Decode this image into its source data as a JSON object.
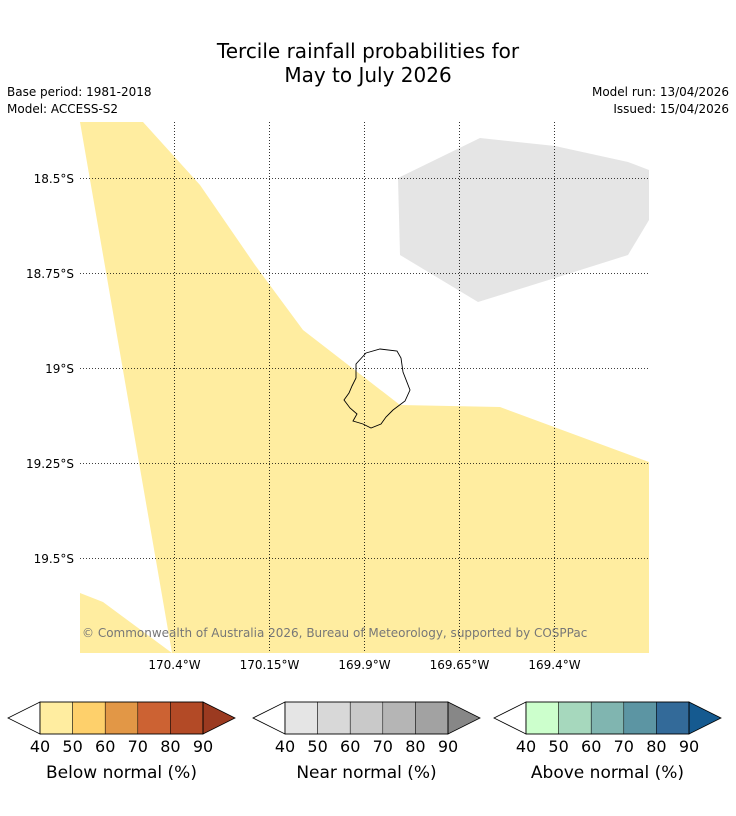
{
  "title": {
    "line1": "Tercile rainfall probabilities for",
    "line2": "May to July 2026"
  },
  "meta": {
    "base_period": "Base period: 1981-2018",
    "model": "Model: ACCESS-S2",
    "model_run": "Model run: 13/04/2026",
    "issued": "Issued: 15/04/2026"
  },
  "map": {
    "lat_labels": [
      "18.5°S",
      "18.75°S",
      "19°S",
      "19.25°S",
      "19.5°S"
    ],
    "lon_labels": [
      "170.4°W",
      "170.15°W",
      "169.9°W",
      "169.65°W",
      "169.4°W"
    ],
    "copyright": "© Commonwealth of Australia 2026, Bureau of Meteorology, supported by COSPPac",
    "colors": {
      "below_normal_40_50": "#ffeda0",
      "near_normal_40_50": "#e5e5e5"
    }
  },
  "legends": [
    {
      "label": "Below normal (%)",
      "ticks": [
        "40",
        "50",
        "60",
        "70",
        "80",
        "90"
      ],
      "colors": [
        "#ffeda0",
        "#fed06b",
        "#e29746",
        "#cc6233",
        "#b34a26",
        "#9b3a20"
      ]
    },
    {
      "label": "Near normal (%)",
      "ticks": [
        "40",
        "50",
        "60",
        "70",
        "80",
        "90"
      ],
      "colors": [
        "#e5e5e5",
        "#d8d8d8",
        "#c9c9c9",
        "#b5b5b5",
        "#a2a2a2",
        "#878787"
      ]
    },
    {
      "label": "Above normal (%)",
      "ticks": [
        "40",
        "50",
        "60",
        "70",
        "80",
        "90"
      ],
      "colors": [
        "#ccffcc",
        "#a6d8bd",
        "#80b5b0",
        "#5c95a3",
        "#336a99",
        "#155a90"
      ]
    }
  ]
}
